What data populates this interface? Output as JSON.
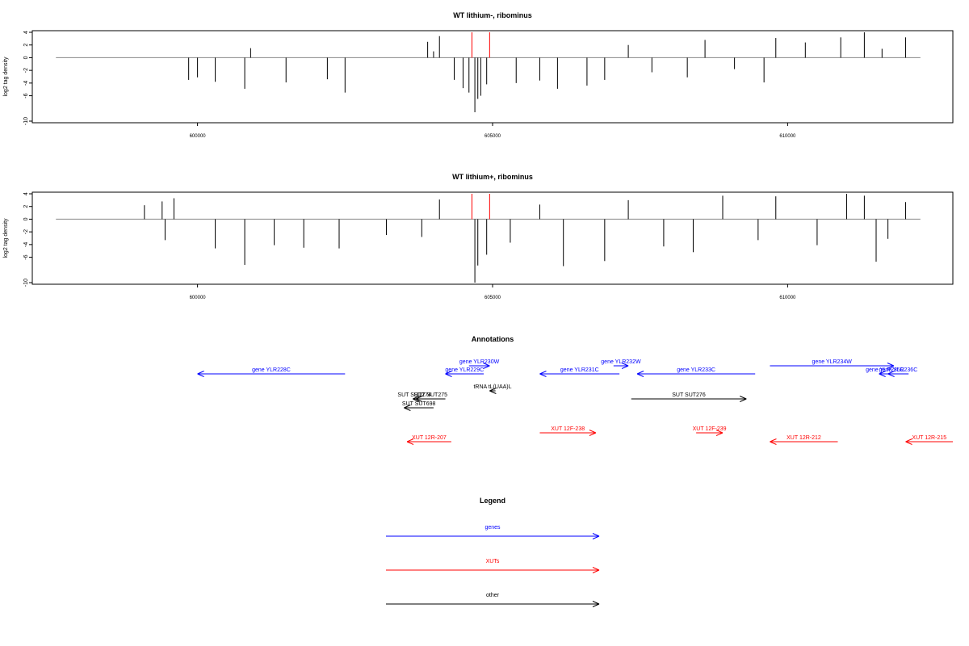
{
  "chart_data": [
    {
      "type": "bar",
      "title": "WT lithium-, ribominus",
      "ylabel": "log2 tag density",
      "xlim": [
        597200,
        612800
      ],
      "ylim": [
        -10,
        4
      ],
      "yticks": [
        4,
        2,
        0,
        -2,
        -4,
        -6,
        -10
      ],
      "xticks": [
        600000,
        605000,
        610000
      ],
      "baseline": {
        "from": 597600,
        "to": 612250
      },
      "markers": [
        604650,
        604950
      ],
      "marker_color": "#ff0000",
      "bars": [
        {
          "x": 599850,
          "y": -3.5
        },
        {
          "x": 600000,
          "y": -3.1
        },
        {
          "x": 600300,
          "y": -3.8
        },
        {
          "x": 600800,
          "y": -4.9
        },
        {
          "x": 600900,
          "y": 1.5
        },
        {
          "x": 601500,
          "y": -3.9
        },
        {
          "x": 602200,
          "y": -3.4
        },
        {
          "x": 602500,
          "y": -5.5
        },
        {
          "x": 603900,
          "y": 2.5
        },
        {
          "x": 604000,
          "y": 1
        },
        {
          "x": 604100,
          "y": 3.4
        },
        {
          "x": 604350,
          "y": -3.5
        },
        {
          "x": 604500,
          "y": -4.8
        },
        {
          "x": 604600,
          "y": -5.5
        },
        {
          "x": 604700,
          "y": -8.6
        },
        {
          "x": 604750,
          "y": -6.5
        },
        {
          "x": 604800,
          "y": -6
        },
        {
          "x": 604900,
          "y": -4.2
        },
        {
          "x": 605400,
          "y": -4
        },
        {
          "x": 605800,
          "y": -3.6
        },
        {
          "x": 606100,
          "y": -4.9
        },
        {
          "x": 606600,
          "y": -4.4
        },
        {
          "x": 606900,
          "y": -3.5
        },
        {
          "x": 607300,
          "y": 2
        },
        {
          "x": 607700,
          "y": -2.3
        },
        {
          "x": 608300,
          "y": -3.1
        },
        {
          "x": 608600,
          "y": 2.8
        },
        {
          "x": 609100,
          "y": -1.8
        },
        {
          "x": 609600,
          "y": -3.9
        },
        {
          "x": 609800,
          "y": 3.1
        },
        {
          "x": 610300,
          "y": 2.4
        },
        {
          "x": 610900,
          "y": 3.2
        },
        {
          "x": 611300,
          "y": 4
        },
        {
          "x": 611600,
          "y": 1.4
        },
        {
          "x": 612000,
          "y": 3.2
        }
      ],
      "bars_color": "#000000"
    },
    {
      "type": "bar",
      "title": "WT lithium+, ribominus",
      "ylabel": "log2 tag density",
      "xlim": [
        597200,
        612800
      ],
      "ylim": [
        -10,
        4
      ],
      "yticks": [
        4,
        2,
        0,
        -2,
        -4,
        -6,
        -10
      ],
      "xticks": [
        600000,
        605000,
        610000
      ],
      "baseline": {
        "from": 597600,
        "to": 612250
      },
      "markers": [
        604650,
        604950
      ],
      "marker_color": "#ff0000",
      "bars": [
        {
          "x": 599100,
          "y": 2.2
        },
        {
          "x": 599400,
          "y": 2.8
        },
        {
          "x": 599450,
          "y": -3.3
        },
        {
          "x": 599600,
          "y": 3.3
        },
        {
          "x": 600300,
          "y": -4.6
        },
        {
          "x": 600800,
          "y": -7.2
        },
        {
          "x": 601300,
          "y": -4.1
        },
        {
          "x": 601800,
          "y": -4.5
        },
        {
          "x": 602400,
          "y": -4.6
        },
        {
          "x": 603200,
          "y": -2.5
        },
        {
          "x": 603800,
          "y": -2.8
        },
        {
          "x": 604100,
          "y": 3.1
        },
        {
          "x": 604700,
          "y": -10
        },
        {
          "x": 604750,
          "y": -7.3
        },
        {
          "x": 604900,
          "y": -5.6
        },
        {
          "x": 605300,
          "y": -3.7
        },
        {
          "x": 605800,
          "y": 2.3
        },
        {
          "x": 606200,
          "y": -7.4
        },
        {
          "x": 606900,
          "y": -6.6
        },
        {
          "x": 607300,
          "y": 3
        },
        {
          "x": 607900,
          "y": -4.3
        },
        {
          "x": 608400,
          "y": -5.2
        },
        {
          "x": 608900,
          "y": 3.7
        },
        {
          "x": 609500,
          "y": -3.3
        },
        {
          "x": 609800,
          "y": 3.6
        },
        {
          "x": 610500,
          "y": -4.1
        },
        {
          "x": 611000,
          "y": 4
        },
        {
          "x": 611300,
          "y": 3.7
        },
        {
          "x": 611500,
          "y": -6.7
        },
        {
          "x": 611700,
          "y": -3.1
        },
        {
          "x": 612000,
          "y": 2.7
        }
      ],
      "bars_color": "#000000"
    },
    {
      "type": "diagram",
      "title": "Annotations",
      "xlim": [
        597200,
        612800
      ],
      "features": [
        {
          "label": "gene YLR228C",
          "start": 602500,
          "end": 600000,
          "color": "#0000ff",
          "row": "upper"
        },
        {
          "label": "gene YLR229C",
          "start": 604850,
          "end": 604200,
          "color": "#0000ff",
          "row": "upper"
        },
        {
          "label": "gene YLR230W",
          "start": 604600,
          "end": 604950,
          "color": "#0000ff",
          "row": "upper-high"
        },
        {
          "label": "gene YLR231C",
          "start": 607150,
          "end": 605800,
          "color": "#0000ff",
          "row": "upper"
        },
        {
          "label": "gene YLR232W",
          "start": 607050,
          "end": 607300,
          "color": "#0000ff",
          "row": "upper-high"
        },
        {
          "label": "gene YLR233C",
          "start": 609450,
          "end": 607450,
          "color": "#0000ff",
          "row": "upper"
        },
        {
          "label": "gene YLR234W",
          "start": 609700,
          "end": 611800,
          "color": "#0000ff",
          "row": "upper-high"
        },
        {
          "label": "gene YLR235C",
          "start": 611750,
          "end": 611550,
          "color": "#0000ff",
          "row": "upper"
        },
        {
          "label": "gene YLR236C",
          "start": 612050,
          "end": 611700,
          "color": "#0000ff",
          "row": "upper"
        },
        {
          "label": "tRNA tL(UAA)L",
          "start": 605050,
          "end": 604950,
          "color": "#000000",
          "row": "middle"
        },
        {
          "label": "SUT SUT275",
          "start": 604200,
          "end": 603700,
          "color": "#000000",
          "row": "middle-low"
        },
        {
          "label": "SUT SUT274",
          "start": 603700,
          "end": 603650,
          "color": "#000000",
          "row": "middle-low"
        },
        {
          "label": "SUT SUT698",
          "start": 604000,
          "end": 603500,
          "color": "#000000",
          "row": "lower"
        },
        {
          "label": "SUT SUT276",
          "start": 607350,
          "end": 609300,
          "color": "#000000",
          "row": "middle-low"
        },
        {
          "label": "XUT 12R-207",
          "start": 604300,
          "end": 603550,
          "color": "#ff0000",
          "row": "xut-low"
        },
        {
          "label": "XUT 12F-238",
          "start": 605800,
          "end": 606750,
          "color": "#ff0000",
          "row": "xut-high"
        },
        {
          "label": "XUT 12F-239",
          "start": 608450,
          "end": 608900,
          "color": "#ff0000",
          "row": "xut-high"
        },
        {
          "label": "XUT 12R-212",
          "start": 610850,
          "end": 609700,
          "color": "#ff0000",
          "row": "xut-low"
        },
        {
          "label": "XUT 12R-215",
          "start": 612800,
          "end": 612000,
          "color": "#ff0000",
          "row": "xut-low"
        }
      ]
    }
  ],
  "legend": {
    "title": "Legend",
    "items": [
      {
        "label": "genes",
        "color": "#0000ff"
      },
      {
        "label": "XUTs",
        "color": "#ff0000"
      },
      {
        "label": "other",
        "color": "#000000"
      }
    ]
  }
}
